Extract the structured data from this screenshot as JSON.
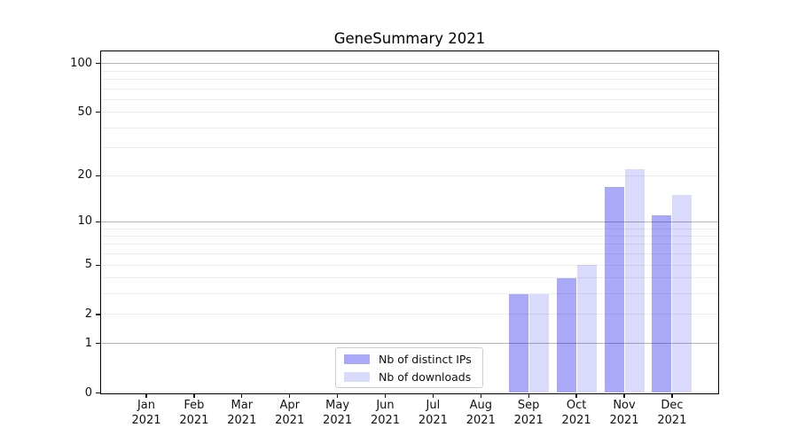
{
  "chart_data": {
    "type": "bar",
    "title": "GeneSummary 2021",
    "categories": [
      "Jan",
      "Feb",
      "Mar",
      "Apr",
      "May",
      "Jun",
      "Jul",
      "Aug",
      "Sep",
      "Oct",
      "Nov",
      "Dec"
    ],
    "x_tick_year": "2021",
    "series": [
      {
        "name": "Nb of distinct IPs",
        "color": "#0a0aeb",
        "alpha": 0.35,
        "values": [
          0,
          0,
          0,
          0,
          0,
          0,
          0,
          0,
          3,
          4,
          17,
          11
        ]
      },
      {
        "name": "Nb of downloads",
        "color": "#0a0aeb",
        "alpha": 0.15,
        "values": [
          0,
          0,
          0,
          0,
          0,
          0,
          0,
          0,
          3,
          5,
          22,
          15
        ]
      }
    ],
    "y_axis": {
      "scale": "log1p",
      "tick_values": [
        0,
        1,
        2,
        5,
        10,
        20,
        50,
        100
      ],
      "tick_labels": [
        "0",
        "1",
        "2",
        "5",
        "10",
        "20",
        "50",
        "100"
      ],
      "major_gridlines": [
        1,
        10,
        100
      ],
      "minor_gridlines": [
        2,
        3,
        4,
        5,
        6,
        7,
        8,
        9,
        20,
        30,
        40,
        50,
        60,
        70,
        80,
        90
      ],
      "ylim": [
        0,
        118
      ]
    },
    "legend": {
      "position": "lower center"
    },
    "grid": true,
    "colors": {
      "major_gridline": "#b5b5b5",
      "minor_gridline": "#ededed",
      "spine": "#000000",
      "text": "#111111"
    }
  }
}
